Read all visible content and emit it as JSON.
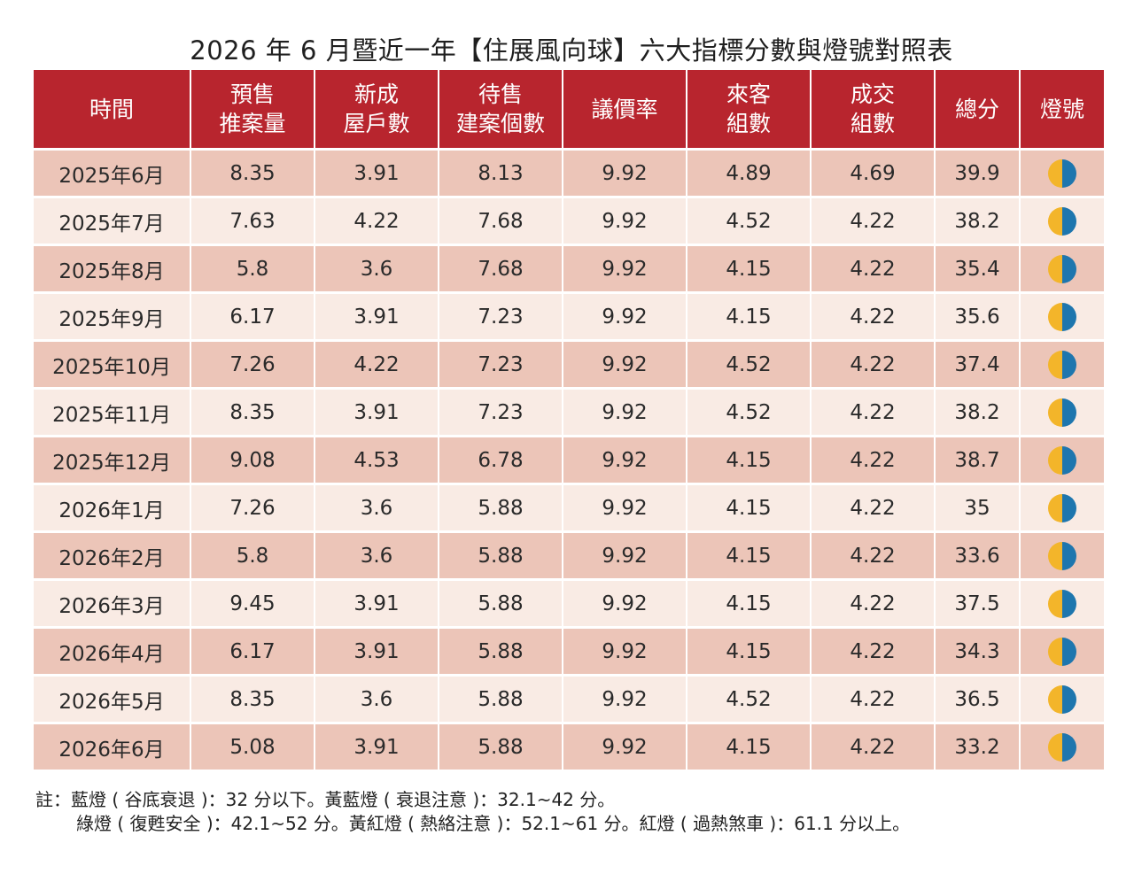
{
  "title": "2026 年 6 月暨近一年【住展風向球】六大指標分數與燈號對照表",
  "columns": [
    [
      "時間"
    ],
    [
      "預售",
      "推案量"
    ],
    [
      "新成",
      "屋戶數"
    ],
    [
      "待售",
      "建案個數"
    ],
    [
      "議價率"
    ],
    [
      "來客",
      "組數"
    ],
    [
      "成交",
      "組數"
    ],
    [
      "總分"
    ],
    [
      "燈號"
    ]
  ],
  "rows": [
    {
      "time": "2025年6月",
      "values": [
        "8.35",
        "3.91",
        "8.13",
        "9.92",
        "4.89",
        "4.69",
        "39.9"
      ],
      "light": "yellow-blue"
    },
    {
      "time": "2025年7月",
      "values": [
        "7.63",
        "4.22",
        "7.68",
        "9.92",
        "4.52",
        "4.22",
        "38.2"
      ],
      "light": "yellow-blue"
    },
    {
      "time": "2025年8月",
      "values": [
        "5.8",
        "3.6",
        "7.68",
        "9.92",
        "4.15",
        "4.22",
        "35.4"
      ],
      "light": "yellow-blue"
    },
    {
      "time": "2025年9月",
      "values": [
        "6.17",
        "3.91",
        "7.23",
        "9.92",
        "4.15",
        "4.22",
        "35.6"
      ],
      "light": "yellow-blue"
    },
    {
      "time": "2025年10月",
      "values": [
        "7.26",
        "4.22",
        "7.23",
        "9.92",
        "4.52",
        "4.22",
        "37.4"
      ],
      "light": "yellow-blue"
    },
    {
      "time": "2025年11月",
      "values": [
        "8.35",
        "3.91",
        "7.23",
        "9.92",
        "4.52",
        "4.22",
        "38.2"
      ],
      "light": "yellow-blue"
    },
    {
      "time": "2025年12月",
      "values": [
        "9.08",
        "4.53",
        "6.78",
        "9.92",
        "4.15",
        "4.22",
        "38.7"
      ],
      "light": "yellow-blue"
    },
    {
      "time": "2026年1月",
      "values": [
        "7.26",
        "3.6",
        "5.88",
        "9.92",
        "4.15",
        "4.22",
        "35"
      ],
      "light": "yellow-blue"
    },
    {
      "time": "2026年2月",
      "values": [
        "5.8",
        "3.6",
        "5.88",
        "9.92",
        "4.15",
        "4.22",
        "33.6"
      ],
      "light": "yellow-blue"
    },
    {
      "time": "2026年3月",
      "values": [
        "9.45",
        "3.91",
        "5.88",
        "9.92",
        "4.15",
        "4.22",
        "37.5"
      ],
      "light": "yellow-blue"
    },
    {
      "time": "2026年4月",
      "values": [
        "6.17",
        "3.91",
        "5.88",
        "9.92",
        "4.15",
        "4.22",
        "34.3"
      ],
      "light": "yellow-blue"
    },
    {
      "time": "2026年5月",
      "values": [
        "8.35",
        "3.6",
        "5.88",
        "9.92",
        "4.52",
        "4.22",
        "36.5"
      ],
      "light": "yellow-blue"
    },
    {
      "time": "2026年6月",
      "values": [
        "5.08",
        "3.91",
        "5.88",
        "9.92",
        "4.15",
        "4.22",
        "33.2"
      ],
      "light": "yellow-blue"
    }
  ],
  "notes": [
    "註：藍燈 ( 谷底衰退 )：32 分以下。黃藍燈 ( 衰退注意 )：32.1~42 分。",
    "綠燈 ( 復甦安全 )：42.1~52 分。黃紅燈 ( 熱絡注意 )：52.1~61 分。紅燈 ( 過熱煞車 )：61.1 分以上。"
  ],
  "colors": {
    "header_bg": "#b8252e",
    "row_dark": "#ecc5b8",
    "row_light": "#f9ebe4",
    "light_yellow": "#f3b52a",
    "light_blue": "#1e76ae"
  }
}
